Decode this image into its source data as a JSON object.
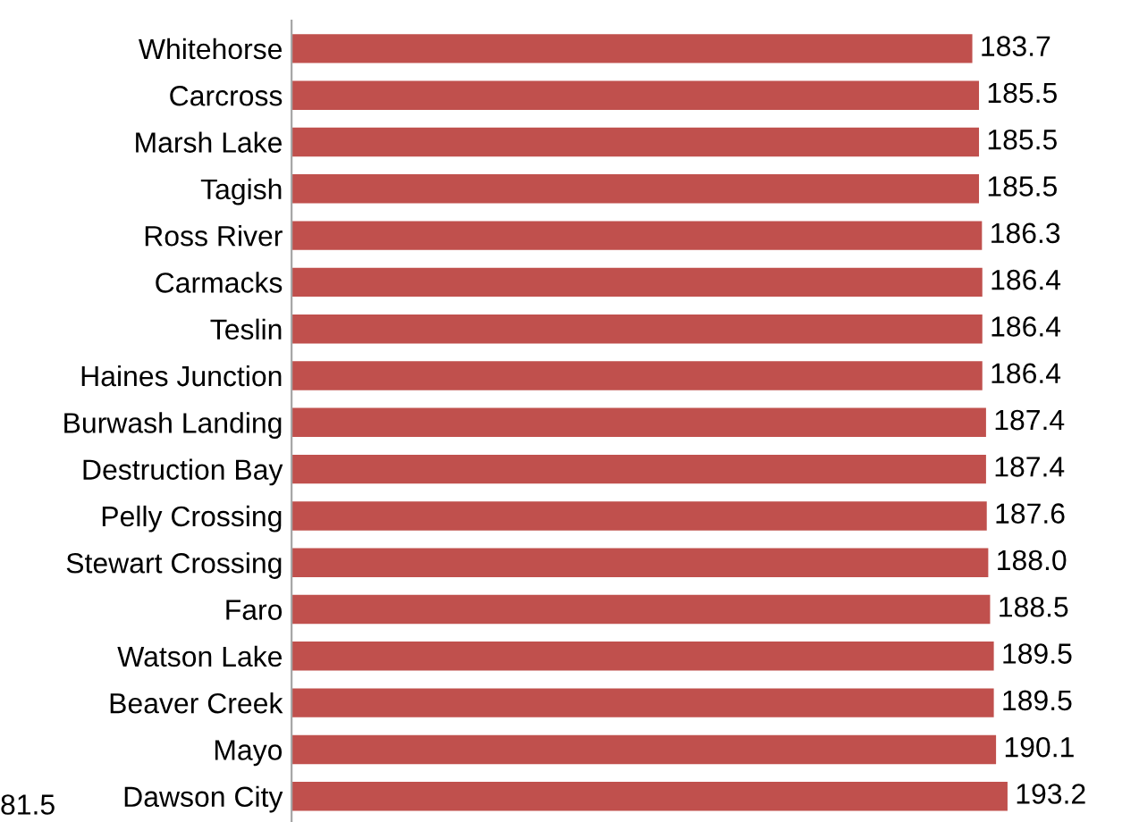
{
  "chart_data": {
    "type": "bar",
    "orientation": "horizontal",
    "categories": [
      "Whitehorse",
      "Carcross",
      "Marsh Lake",
      "Tagish",
      "Ross River",
      "Carmacks",
      "Teslin",
      "Haines Junction",
      "Burwash Landing",
      "Destruction Bay",
      "Pelly Crossing",
      "Stewart Crossing",
      "Faro",
      "Watson Lake",
      "Beaver Creek",
      "Mayo",
      "Dawson City"
    ],
    "values": [
      183.7,
      185.5,
      185.5,
      185.5,
      186.3,
      186.4,
      186.4,
      186.4,
      187.4,
      187.4,
      187.6,
      188.0,
      188.5,
      189.5,
      189.5,
      190.1,
      193.2
    ],
    "value_labels": [
      "183.7",
      "185.5",
      "185.5",
      "185.5",
      "186.3",
      "186.4",
      "186.4",
      "186.4",
      "187.4",
      "187.4",
      "187.6",
      "188.0",
      "188.5",
      "189.5",
      "189.5",
      "190.1",
      "193.2"
    ],
    "color": "#c0504d",
    "tick_labels": "y",
    "grid": false,
    "legend": false,
    "annotations": [
      "81.5"
    ]
  }
}
